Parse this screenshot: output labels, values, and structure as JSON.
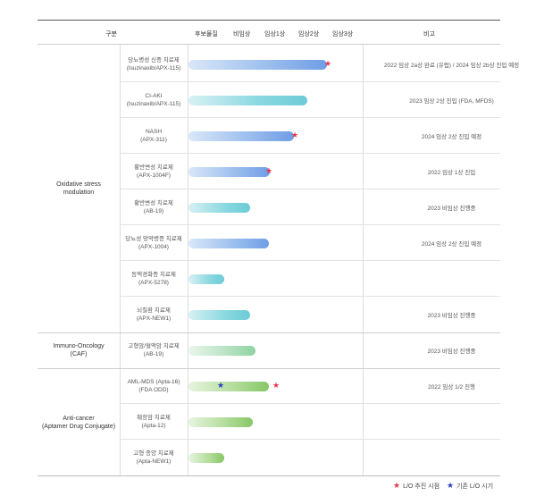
{
  "header": {
    "category": "구분",
    "stages": [
      "후보물질",
      "비임상",
      "임상1상",
      "임상2상",
      "임상3상"
    ],
    "remarks": "비고"
  },
  "categories": [
    {
      "label": "Oxidative stress\nmodulation"
    },
    {
      "label": "Immuno-Oncology\n(CAF)"
    },
    {
      "label": "Anti-cancer\n(Aptamer Drug Conjugate)"
    }
  ],
  "rows": [
    {
      "name": "당뇨병성 신증 치료제",
      "code": "(Isuzinaxib/APX-115)",
      "progress": 0.97,
      "style": "ox",
      "red_star": 0.95,
      "note": "2022 임상 2a상 완료 (유럽) / 2024 임상 2b상 진입 예정"
    },
    {
      "name": "CI-AKI",
      "code": "(Isuzinaxib/APX-115)",
      "progress": 0.83,
      "style": "cyan",
      "note": "2023 임상 2상 진입 (FDA, MFDS)"
    },
    {
      "name": "NASH",
      "code": "(APX-311)",
      "progress": 0.74,
      "style": "ox",
      "red_star": 0.72,
      "note": "2024 임상 2상 진입 예정"
    },
    {
      "name": "황반변성 치료제",
      "code": "(APX-1004F)",
      "progress": 0.57,
      "style": "ox",
      "red_star": 0.54,
      "note": "2022 임상 1상 진입"
    },
    {
      "name": "황반변성 치료제",
      "code": "(AB-19)",
      "progress": 0.43,
      "style": "cyan",
      "note": "2023 비임상 진행중"
    },
    {
      "name": "당뇨성 망막병증 치료제",
      "code": "(APX-1004)",
      "progress": 0.56,
      "style": "ox",
      "note": "2024 임상 2상 진입 예정"
    },
    {
      "name": "동맥경화증 치료제",
      "code": "(APX-5278)",
      "progress": 0.25,
      "style": "cyan",
      "note": ""
    },
    {
      "name": "뇌질환 치료제",
      "code": "(APX-NEW1)",
      "progress": 0.43,
      "style": "cyan",
      "note": "2023 비임상 진행중"
    },
    {
      "name": "고형암/혈액암 치료제",
      "code": "(AB-19)",
      "progress": 0.47,
      "style": "lgreen",
      "note": "2023 비임상 진행중"
    },
    {
      "name": "AML-MDS (Apta-16)",
      "code": "(FDA ODD)",
      "progress": 0.56,
      "style": "green",
      "blue_star": 0.2,
      "red_star": 0.59,
      "note": "2022 임상 1/2 진행"
    },
    {
      "name": "췌장암 치료제",
      "code": "(Apta-12)",
      "progress": 0.45,
      "style": "green",
      "note": ""
    },
    {
      "name": "고형 종양 치료제",
      "code": "(Apta-NEW1)",
      "progress": 0.25,
      "style": "green",
      "note": ""
    }
  ],
  "legend": {
    "red_label": "L/O 추진 시점",
    "blue_label": "기존 L/O 시기"
  }
}
